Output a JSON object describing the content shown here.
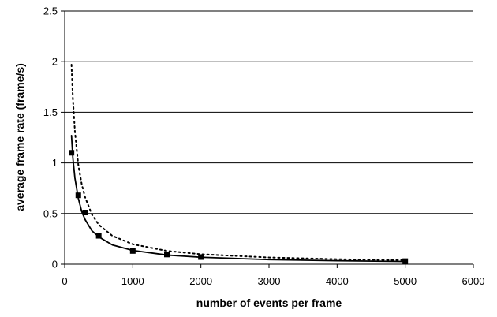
{
  "chart_data": {
    "type": "scatter",
    "title": "",
    "xlabel": "number of events per frame",
    "ylabel": "average frame rate (frame/s)",
    "xlim": [
      0,
      6000
    ],
    "ylim": [
      0,
      2.5
    ],
    "x_ticks": [
      "0",
      "1000",
      "2000",
      "3000",
      "4000",
      "5000",
      "6000"
    ],
    "y_ticks": [
      "0",
      "0.5",
      "1",
      "1.5",
      "2",
      "2.5"
    ],
    "grid": "horizontal",
    "legend": "none",
    "series": [
      {
        "style": "markers",
        "marker": "square",
        "color": "#000000",
        "x": [
          100,
          200,
          300,
          500,
          1000,
          1500,
          2000,
          5000
        ],
        "y": [
          1.1,
          0.68,
          0.51,
          0.28,
          0.13,
          0.095,
          0.07,
          0.03
        ]
      },
      {
        "style": "solid-line",
        "color": "#000000",
        "x": [
          100,
          120,
          150,
          200,
          250,
          300,
          400,
          500,
          700,
          1000,
          1500,
          2000,
          3000,
          4000,
          5000
        ],
        "y": [
          1.27,
          1.05,
          0.85,
          0.65,
          0.52,
          0.44,
          0.33,
          0.27,
          0.19,
          0.135,
          0.09,
          0.068,
          0.045,
          0.034,
          0.027
        ]
      },
      {
        "style": "dotted-line",
        "color": "#000000",
        "x": [
          100,
          120,
          150,
          200,
          250,
          300,
          400,
          500,
          700,
          1000,
          1500,
          2000,
          3000,
          4000,
          5000
        ],
        "y": [
          1.97,
          1.64,
          1.31,
          0.98,
          0.79,
          0.66,
          0.49,
          0.39,
          0.28,
          0.197,
          0.131,
          0.098,
          0.066,
          0.049,
          0.039
        ]
      }
    ]
  }
}
